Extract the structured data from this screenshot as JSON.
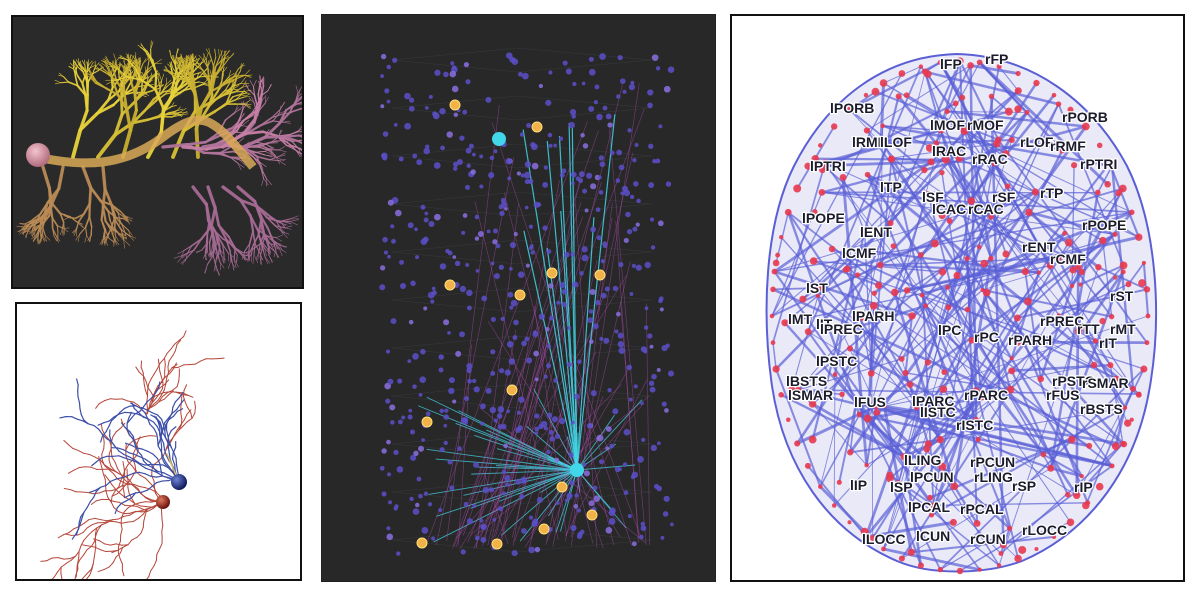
{
  "figure": {
    "panels": [
      {
        "id": "neuron-render-dark",
        "description": "yellow-to-pink branching dendritic arbor with soma sphere on dark background"
      },
      {
        "id": "neuron-pair-light",
        "description": "two reconstructed neurons (blue and red) with spherical somas on white background"
      },
      {
        "id": "network-3d-cluster",
        "description": "3D point-cloud network with cyan and magenta connections on dark background"
      },
      {
        "id": "brain-connectome",
        "description": "axial view of brain connectome graph with blue edges, red nodes and region labels"
      }
    ]
  },
  "colors": {
    "dark_bg": "#2a2a2a",
    "dendrite_yellow": "#e8d23a",
    "dendrite_pink": "#c77fa6",
    "neuron_blue": "#2f3f9a",
    "neuron_red": "#b33a2a",
    "network_cyan": "#41d6e8",
    "network_magenta": "#c24fc4",
    "node_purple": "#6f5ed6",
    "node_orange": "#f2b24a",
    "edge_blue": "#5a5fd6",
    "node_red": "#e8384f"
  },
  "connectome": {
    "region_labels": [
      "lFP",
      "rFP",
      "lPORB",
      "rPORB",
      "lMOF",
      "rMOF",
      "lRMF",
      "lLOF",
      "rLOF",
      "rRMF",
      "lRAC",
      "rRAC",
      "lPTRI",
      "rPTRI",
      "lTP",
      "rTP",
      "lSF",
      "rSF",
      "lCAC",
      "rCAC",
      "lPOPE",
      "rPOPE",
      "lENT",
      "rENT",
      "lCMF",
      "rCMF",
      "lST",
      "rST",
      "lMT",
      "lIT",
      "lPREC",
      "lPARH",
      "rPREC",
      "rTT",
      "rMT",
      "rIT",
      "lPC",
      "rPC",
      "rPARH",
      "lPSTC",
      "rPSTC",
      "lBSTS",
      "lSMAR",
      "rSMAR",
      "rFUS",
      "rBSTS",
      "lFUS",
      "lPARC",
      "rPARC",
      "lISTC",
      "rISTC",
      "lLING",
      "rPCUN",
      "lPCUN",
      "rLING",
      "lIP",
      "lSP",
      "rSP",
      "rIP",
      "lPCAL",
      "rPCAL",
      "lLOCC",
      "lCUN",
      "rCUN",
      "rLOCC"
    ]
  }
}
